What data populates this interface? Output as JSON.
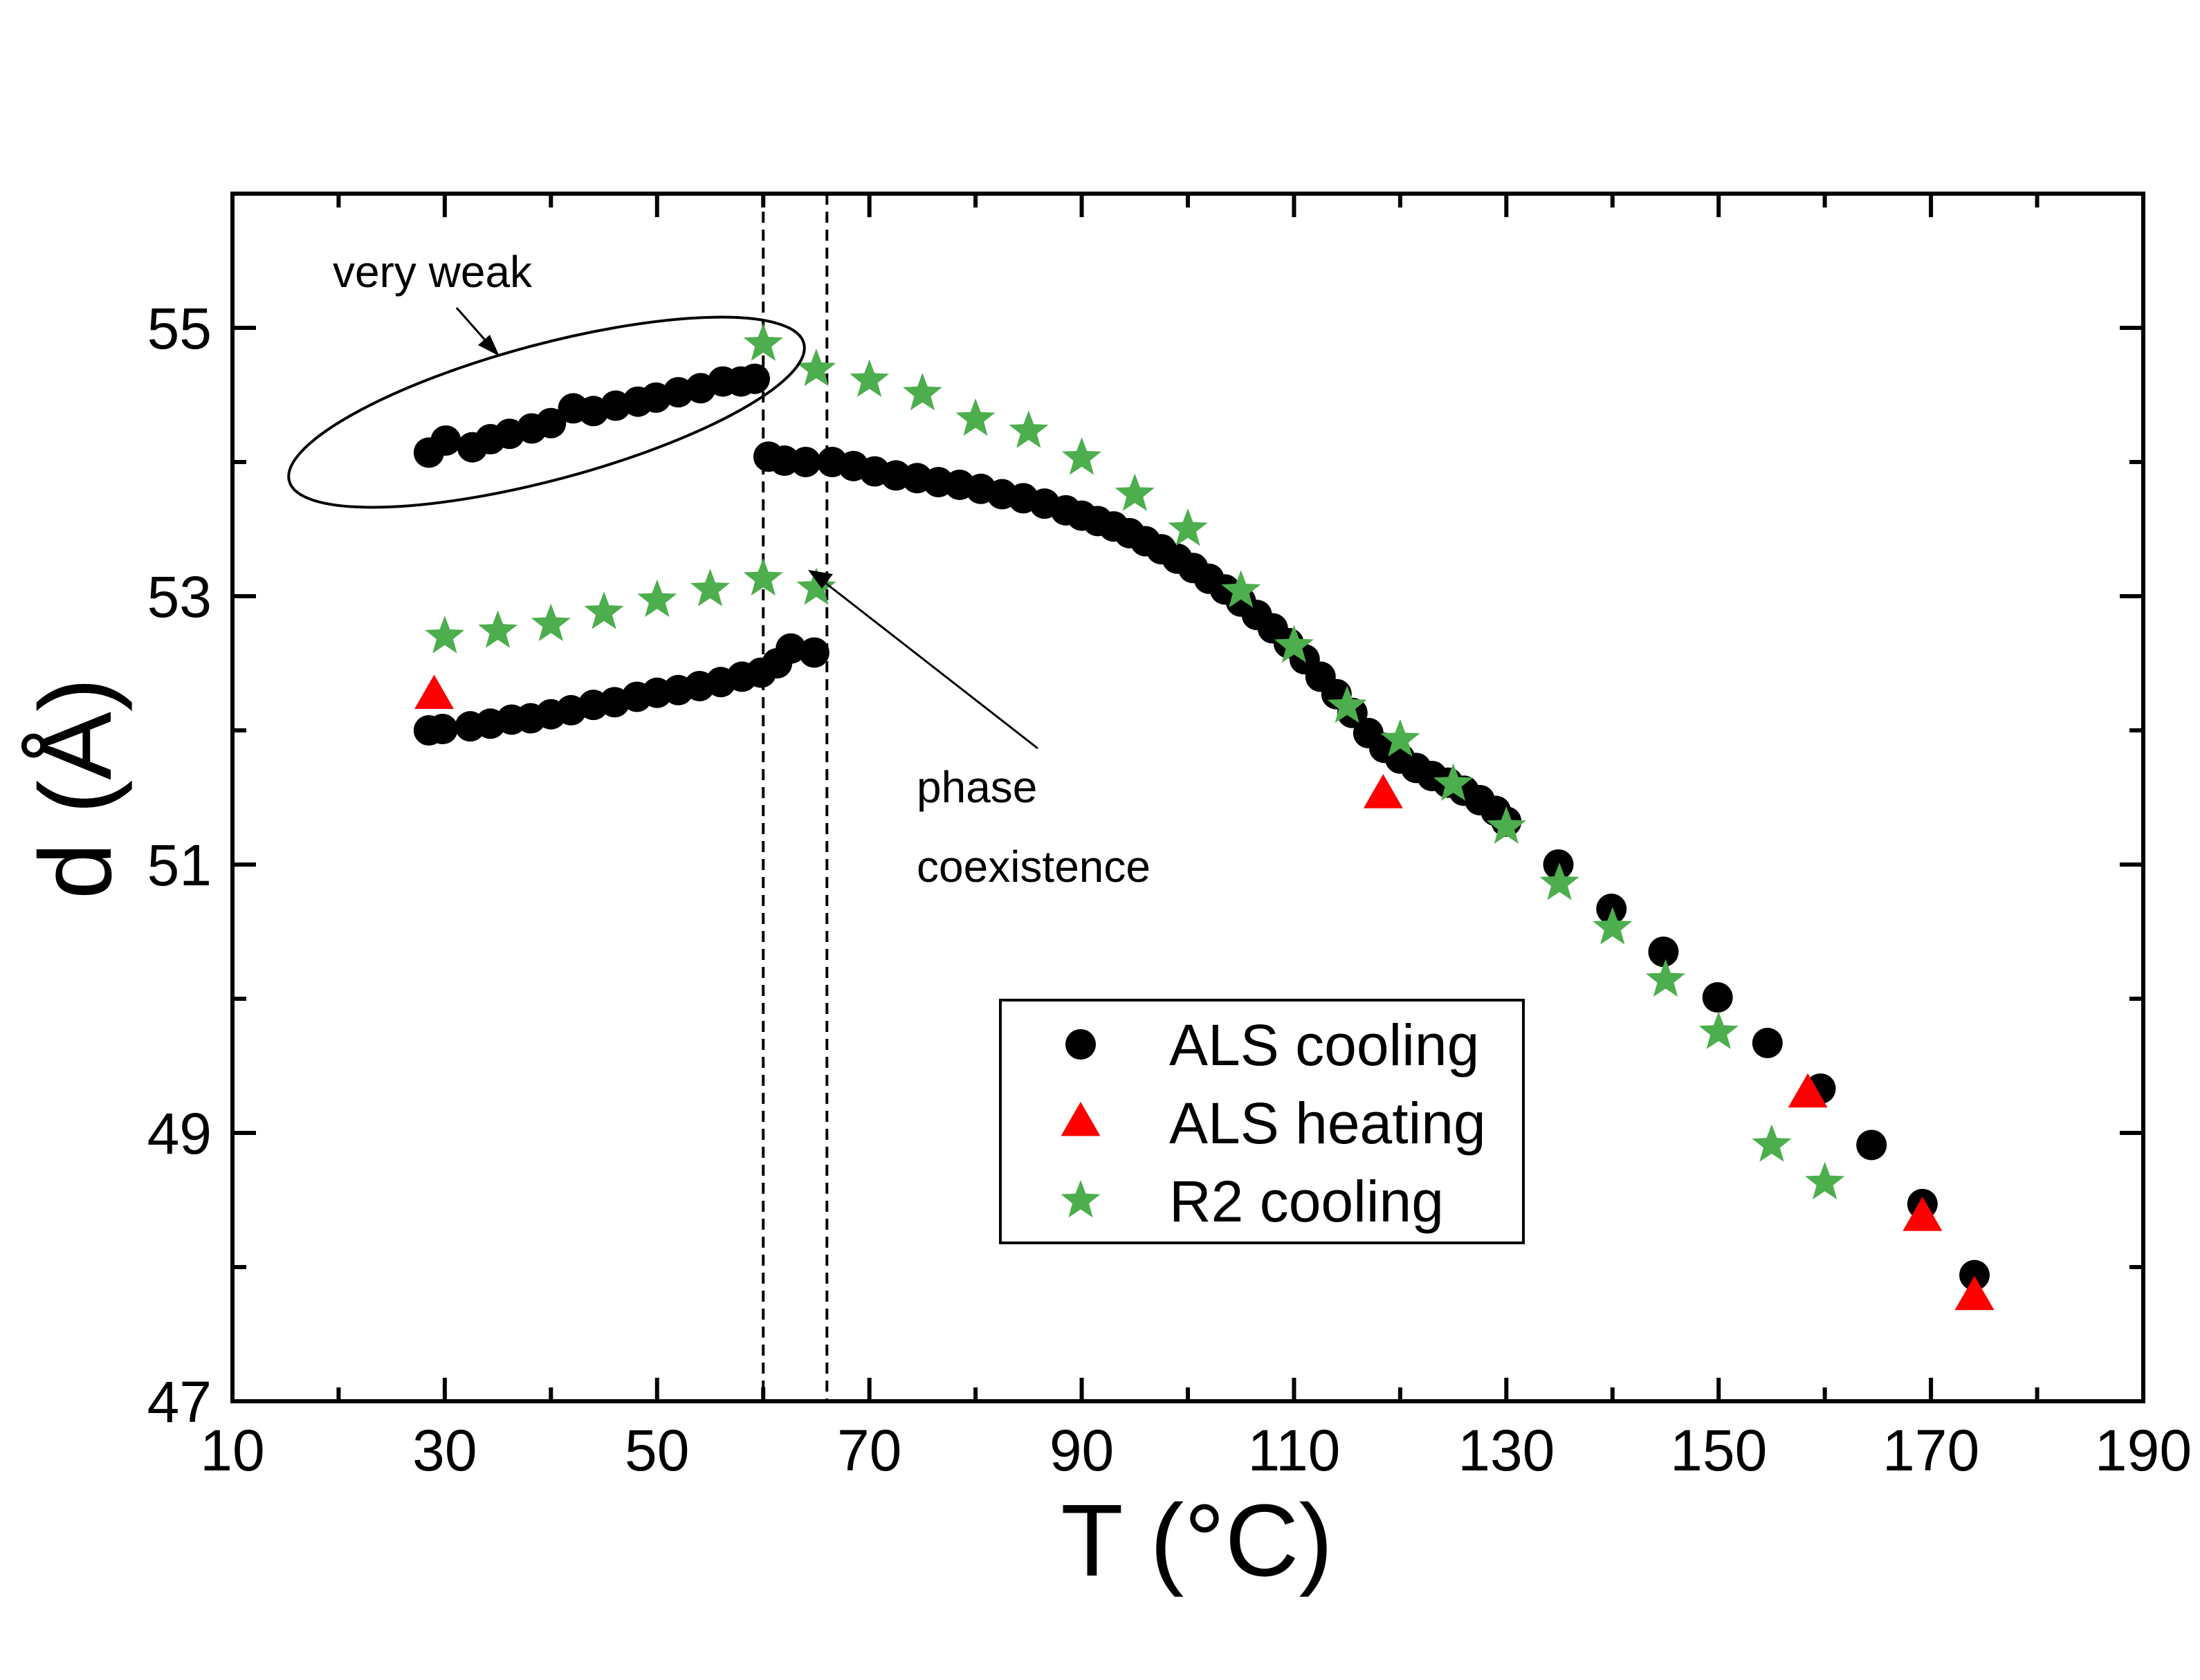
{
  "chart_data": {
    "type": "scatter",
    "title": "",
    "xlabel": "T (°C)",
    "ylabel": "d (Å)",
    "xlim": [
      10,
      190
    ],
    "ylim": [
      47,
      56
    ],
    "xticks": [
      10,
      30,
      50,
      70,
      90,
      110,
      130,
      150,
      170,
      190
    ],
    "yticks": [
      47,
      49,
      51,
      53,
      55
    ],
    "grid": false,
    "legend_position": "lower-right",
    "series": [
      {
        "name": "ALS cooling",
        "marker": "circle",
        "color": "#000000",
        "points": [
          [
            28.5,
            54.07
          ],
          [
            30.1,
            54.16
          ],
          [
            32.6,
            54.11
          ],
          [
            34.3,
            54.17
          ],
          [
            36.1,
            54.21
          ],
          [
            38.2,
            54.25
          ],
          [
            40.0,
            54.29
          ],
          [
            42.1,
            54.4
          ],
          [
            44.0,
            54.38
          ],
          [
            46.1,
            54.42
          ],
          [
            48.2,
            54.45
          ],
          [
            49.9,
            54.48
          ],
          [
            52.0,
            54.52
          ],
          [
            54.1,
            54.55
          ],
          [
            56.2,
            54.6
          ],
          [
            57.9,
            54.6
          ],
          [
            59.2,
            54.62
          ],
          [
            28.5,
            52.0
          ],
          [
            29.8,
            52.01
          ],
          [
            32.4,
            52.03
          ],
          [
            34.3,
            52.05
          ],
          [
            36.3,
            52.08
          ],
          [
            38.1,
            52.09
          ],
          [
            40.0,
            52.12
          ],
          [
            41.9,
            52.15
          ],
          [
            44.0,
            52.19
          ],
          [
            46.0,
            52.21
          ],
          [
            48.1,
            52.25
          ],
          [
            50.0,
            52.28
          ],
          [
            52.0,
            52.3
          ],
          [
            54.0,
            52.33
          ],
          [
            56.0,
            52.36
          ],
          [
            58.0,
            52.4
          ],
          [
            59.8,
            52.43
          ],
          [
            61.3,
            52.5
          ],
          [
            62.6,
            52.61
          ],
          [
            64.8,
            52.58
          ],
          [
            60.5,
            54.04
          ],
          [
            62.0,
            54.01
          ],
          [
            64.0,
            54.0
          ],
          [
            66.5,
            54.0
          ],
          [
            68.5,
            53.97
          ],
          [
            70.5,
            53.93
          ],
          [
            72.5,
            53.9
          ],
          [
            74.5,
            53.88
          ],
          [
            76.5,
            53.85
          ],
          [
            78.5,
            53.83
          ],
          [
            80.5,
            53.8
          ],
          [
            82.5,
            53.76
          ],
          [
            84.5,
            53.73
          ],
          [
            86.5,
            53.69
          ],
          [
            88.5,
            53.64
          ],
          [
            90.0,
            53.6
          ],
          [
            91.5,
            53.56
          ],
          [
            93.0,
            53.52
          ],
          [
            94.5,
            53.47
          ],
          [
            96.0,
            53.41
          ],
          [
            97.5,
            53.35
          ],
          [
            99.0,
            53.28
          ],
          [
            100.5,
            53.21
          ],
          [
            102.0,
            53.13
          ],
          [
            103.5,
            53.05
          ],
          [
            105.0,
            52.96
          ],
          [
            106.5,
            52.86
          ],
          [
            108.0,
            52.76
          ],
          [
            109.5,
            52.65
          ],
          [
            111.0,
            52.53
          ],
          [
            112.5,
            52.4
          ],
          [
            114.0,
            52.27
          ],
          [
            115.5,
            52.13
          ],
          [
            117.0,
            51.98
          ],
          [
            118.5,
            51.87
          ],
          [
            120.0,
            51.79
          ],
          [
            121.5,
            51.72
          ],
          [
            123.0,
            51.66
          ],
          [
            124.5,
            51.61
          ],
          [
            126.0,
            51.55
          ],
          [
            127.5,
            51.48
          ],
          [
            129.0,
            51.4
          ],
          [
            130.0,
            51.32
          ],
          [
            134.9,
            51.0
          ],
          [
            139.9,
            50.67
          ],
          [
            144.8,
            50.35
          ],
          [
            149.9,
            50.01
          ],
          [
            154.6,
            49.67
          ],
          [
            159.6,
            49.33
          ],
          [
            164.4,
            48.91
          ],
          [
            169.2,
            48.47
          ],
          [
            174.1,
            47.94
          ]
        ]
      },
      {
        "name": "ALS heating",
        "marker": "triangle",
        "color": "#ff0000",
        "points": [
          [
            29.0,
            52.26
          ],
          [
            118.4,
            51.52
          ],
          [
            158.4,
            49.29
          ],
          [
            169.2,
            48.37
          ],
          [
            174.1,
            47.78
          ]
        ]
      },
      {
        "name": "R2 cooling",
        "marker": "star",
        "color": "#4cae4c",
        "points": [
          [
            30.0,
            52.7
          ],
          [
            35.0,
            52.74
          ],
          [
            40.0,
            52.79
          ],
          [
            45.0,
            52.88
          ],
          [
            50.0,
            52.97
          ],
          [
            55.0,
            53.05
          ],
          [
            60.0,
            53.13
          ],
          [
            65.0,
            53.06
          ],
          [
            60.0,
            54.88
          ],
          [
            65.0,
            54.69
          ],
          [
            70.0,
            54.61
          ],
          [
            75.0,
            54.51
          ],
          [
            80.0,
            54.32
          ],
          [
            85.0,
            54.23
          ],
          [
            90.0,
            54.03
          ],
          [
            95.0,
            53.76
          ],
          [
            100.0,
            53.5
          ],
          [
            105.0,
            53.04
          ],
          [
            110.0,
            52.63
          ],
          [
            115.0,
            52.18
          ],
          [
            120.0,
            51.93
          ],
          [
            125.0,
            51.6
          ],
          [
            130.0,
            51.28
          ],
          [
            135.0,
            50.86
          ],
          [
            140.0,
            50.53
          ],
          [
            145.0,
            50.14
          ],
          [
            150.0,
            49.75
          ],
          [
            155.0,
            48.91
          ],
          [
            160.0,
            48.63
          ]
        ]
      }
    ],
    "vertical_lines": [
      60,
      66
    ],
    "annotations": [
      {
        "text": "very weak"
      },
      {
        "text_lines": [
          "phase",
          "coexistence"
        ]
      }
    ]
  }
}
